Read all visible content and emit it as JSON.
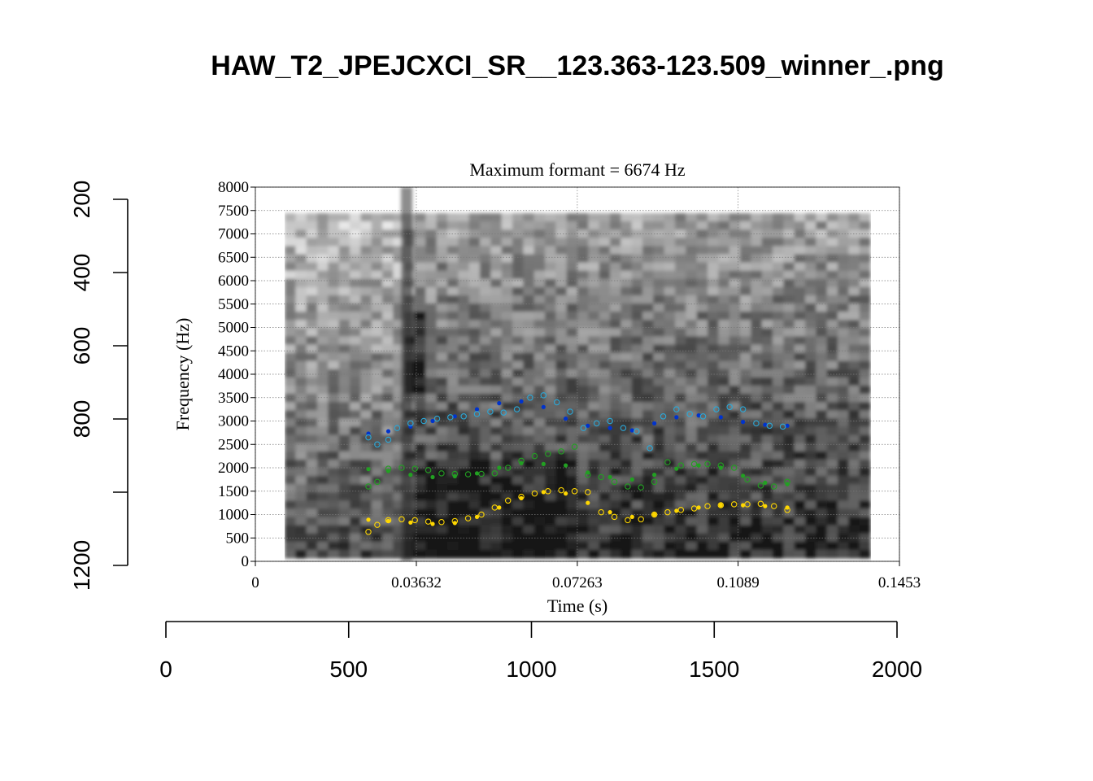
{
  "page_title": "HAW_T2_JPEJCXCI_SR__123.363-123.509_winner_.png",
  "chart_data": [
    {
      "type": "scatter",
      "subtitle": "Maximum formant  =  6674 Hz",
      "xlabel": "Time (s)",
      "ylabel": "Frequency (Hz)",
      "xlim": [
        0,
        0.1453
      ],
      "ylim": [
        0,
        8000
      ],
      "x_ticks": [
        "0",
        "0.03632",
        "0.07263",
        "0.1089",
        "0.1453"
      ],
      "y_ticks": [
        "0",
        "500",
        "1000",
        "1500",
        "2000",
        "2500",
        "3000",
        "3500",
        "4000",
        "4500",
        "5000",
        "5500",
        "6000",
        "6500",
        "7000",
        "7500",
        "8000"
      ],
      "grid": true,
      "background": "spectrogram (grayscale)",
      "colors": {
        "F1": "#ffd700",
        "F2": "#22a022",
        "F3": "#0033cc",
        "F3_alt": "#2aa8d8"
      },
      "series": [
        {
          "marker": "filled",
          "color": "#0033cc",
          "x": [
            0.0255,
            0.03,
            0.035,
            0.04,
            0.045,
            0.05,
            0.055,
            0.06,
            0.065,
            0.07,
            0.075,
            0.08,
            0.085,
            0.09,
            0.095,
            0.1,
            0.105,
            0.11,
            0.115,
            0.12
          ],
          "y": [
            2730,
            2780,
            2880,
            3000,
            3100,
            3250,
            3380,
            3420,
            3300,
            3050,
            2900,
            2850,
            2800,
            2950,
            3080,
            3120,
            3080,
            2980,
            2920,
            2900
          ]
        },
        {
          "marker": "open",
          "color": "#2aa8d8",
          "x": [
            0.0255,
            0.0275,
            0.03,
            0.032,
            0.035,
            0.038,
            0.041,
            0.044,
            0.047,
            0.05,
            0.053,
            0.056,
            0.059,
            0.062,
            0.065,
            0.068,
            0.071,
            0.074,
            0.077,
            0.08,
            0.083,
            0.086,
            0.089,
            0.092,
            0.095,
            0.098,
            0.101,
            0.104,
            0.107,
            0.11,
            0.113,
            0.116,
            0.119
          ],
          "y": [
            2650,
            2500,
            2600,
            2850,
            2950,
            3000,
            3050,
            3080,
            3100,
            3150,
            3200,
            3180,
            3250,
            3500,
            3550,
            3400,
            3200,
            2850,
            2950,
            3000,
            2850,
            2780,
            2420,
            3100,
            3250,
            3150,
            3100,
            3250,
            3300,
            3250,
            2950,
            2900,
            2880
          ]
        },
        {
          "marker": "filled",
          "color": "#22a022",
          "x": [
            0.0255,
            0.03,
            0.035,
            0.04,
            0.045,
            0.05,
            0.055,
            0.06,
            0.065,
            0.07,
            0.075,
            0.08,
            0.085,
            0.09,
            0.095,
            0.1,
            0.105,
            0.11,
            0.115,
            0.12
          ],
          "y": [
            1970,
            1930,
            1850,
            1800,
            1820,
            1880,
            2000,
            2100,
            2080,
            2050,
            1900,
            1800,
            1750,
            1850,
            1980,
            2050,
            2000,
            1830,
            1680,
            1650
          ]
        },
        {
          "marker": "open",
          "color": "#22a022",
          "x": [
            0.0255,
            0.0275,
            0.03,
            0.033,
            0.036,
            0.039,
            0.042,
            0.045,
            0.048,
            0.051,
            0.054,
            0.057,
            0.06,
            0.063,
            0.066,
            0.069,
            0.072,
            0.075,
            0.078,
            0.081,
            0.084,
            0.087,
            0.09,
            0.093,
            0.096,
            0.099,
            0.102,
            0.105,
            0.108,
            0.111,
            0.114,
            0.117,
            0.12
          ],
          "y": [
            1600,
            1700,
            1980,
            2000,
            1980,
            1950,
            1880,
            1870,
            1860,
            1870,
            1880,
            2000,
            2150,
            2250,
            2300,
            2350,
            2450,
            1850,
            1800,
            1700,
            1600,
            1580,
            1700,
            2120,
            2050,
            2080,
            2080,
            2050,
            2000,
            1750,
            1620,
            1600,
            1700
          ]
        },
        {
          "marker": "filled",
          "color": "#ffd700",
          "x": [
            0.0255,
            0.03,
            0.035,
            0.04,
            0.045,
            0.05,
            0.055,
            0.06,
            0.065,
            0.07,
            0.075,
            0.08,
            0.085,
            0.09,
            0.095,
            0.1,
            0.105,
            0.11,
            0.115,
            0.12
          ],
          "y": [
            890,
            860,
            830,
            800,
            820,
            950,
            1150,
            1350,
            1480,
            1450,
            1250,
            1050,
            950,
            1000,
            1080,
            1150,
            1200,
            1200,
            1180,
            1150
          ]
        },
        {
          "marker": "open",
          "color": "#ffd700",
          "x": [
            0.0255,
            0.0275,
            0.03,
            0.033,
            0.036,
            0.039,
            0.042,
            0.045,
            0.048,
            0.051,
            0.054,
            0.057,
            0.06,
            0.063,
            0.066,
            0.069,
            0.072,
            0.075,
            0.078,
            0.081,
            0.084,
            0.087,
            0.09,
            0.093,
            0.096,
            0.099,
            0.102,
            0.105,
            0.108,
            0.111,
            0.114,
            0.117,
            0.12
          ],
          "y": [
            630,
            780,
            880,
            900,
            880,
            850,
            840,
            860,
            920,
            1000,
            1150,
            1300,
            1380,
            1450,
            1500,
            1520,
            1500,
            1480,
            1050,
            950,
            880,
            900,
            1000,
            1050,
            1100,
            1130,
            1180,
            1200,
            1220,
            1220,
            1230,
            1180,
            1100
          ]
        }
      ]
    },
    {
      "type": "axes",
      "x_ticks": [
        "0",
        "500",
        "1000",
        "1500",
        "2000"
      ],
      "xlim": [
        0,
        2000
      ],
      "y_ticks": [
        "200",
        "400",
        "600",
        "800",
        "1200"
      ],
      "ylim": [
        200,
        1200
      ]
    }
  ]
}
